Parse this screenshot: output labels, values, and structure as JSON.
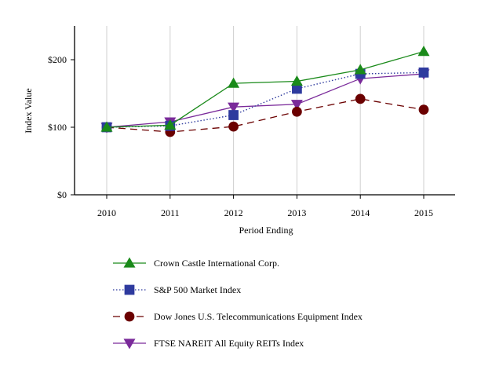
{
  "chart_data": {
    "type": "line",
    "title": "",
    "xlabel": "Period Ending",
    "ylabel": "Index Value",
    "categories": [
      "2010",
      "2011",
      "2012",
      "2013",
      "2014",
      "2015"
    ],
    "ylim": [
      0,
      250
    ],
    "yticks": [
      0,
      100,
      200
    ],
    "ytick_labels": [
      "$0",
      "$100",
      "$200"
    ],
    "series": [
      {
        "name": "Crown Castle International Corp.",
        "values": [
          100,
          103,
          165,
          168,
          185,
          212
        ],
        "color": "#1a8a1a",
        "marker": "triangle-up",
        "line_style": "solid"
      },
      {
        "name": "S&P 500 Market Index",
        "values": [
          100,
          102,
          118,
          157,
          179,
          181
        ],
        "color": "#2e3a9e",
        "marker": "square",
        "line_style": "dotted"
      },
      {
        "name": "Dow Jones U.S. Telecommunications Equipment Index",
        "values": [
          100,
          93,
          101,
          123,
          142,
          126
        ],
        "color": "#6b0000",
        "marker": "circle",
        "line_style": "dashed"
      },
      {
        "name": "FTSE NAREIT All Equity REITs Index",
        "values": [
          100,
          108,
          130,
          134,
          172,
          179
        ],
        "color": "#7a2a9a",
        "marker": "triangle-down",
        "line_style": "solid"
      }
    ]
  }
}
